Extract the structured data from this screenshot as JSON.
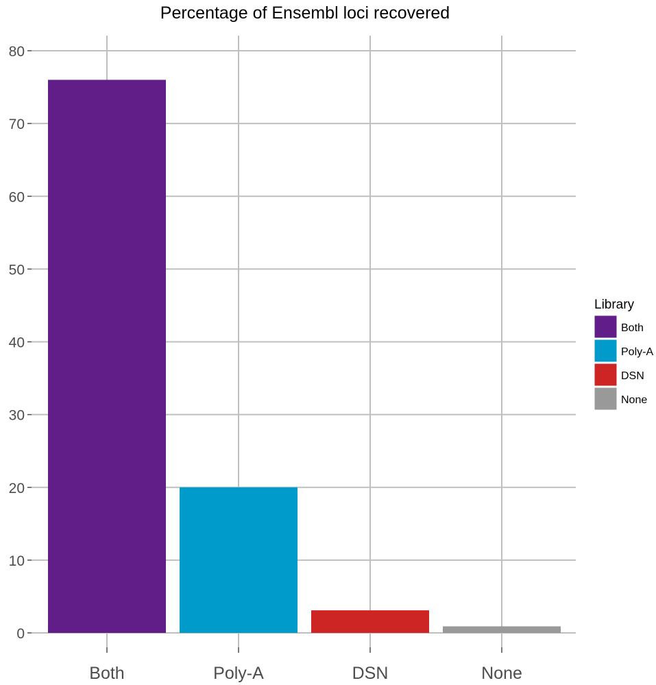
{
  "chart_data": {
    "type": "bar",
    "title": "Percentage of Ensembl loci recovered",
    "xlabel": "",
    "ylabel": "",
    "categories": [
      "Both",
      "Poly-A",
      "DSN",
      "None"
    ],
    "values": [
      76,
      20,
      3.1,
      0.9
    ],
    "colors": [
      "#621e88",
      "#009bcb",
      "#cd2424",
      "#999999"
    ],
    "ylim": [
      0,
      80
    ],
    "yticks": [
      0,
      10,
      20,
      30,
      40,
      50,
      60,
      70,
      80
    ],
    "grid": true,
    "legend": {
      "title": "Library",
      "placement": "right",
      "entries": [
        "Both",
        "Poly-A",
        "DSN",
        "None"
      ]
    }
  }
}
